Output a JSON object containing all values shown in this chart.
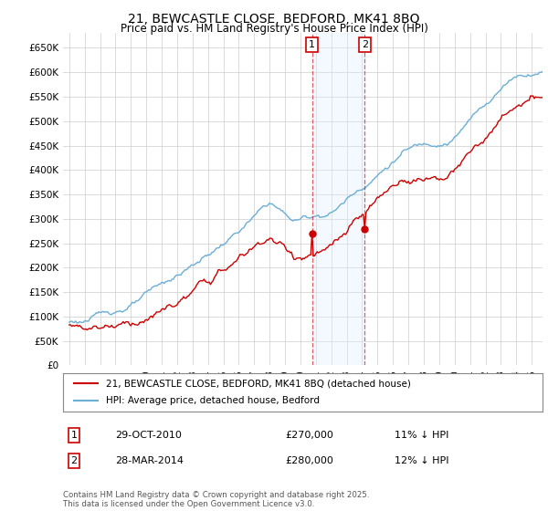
{
  "title": "21, BEWCASTLE CLOSE, BEDFORD, MK41 8BQ",
  "subtitle": "Price paid vs. HM Land Registry's House Price Index (HPI)",
  "ylim": [
    0,
    680000
  ],
  "yticks": [
    0,
    50000,
    100000,
    150000,
    200000,
    250000,
    300000,
    350000,
    400000,
    450000,
    500000,
    550000,
    600000,
    650000
  ],
  "ytick_labels": [
    "£0",
    "£50K",
    "£100K",
    "£150K",
    "£200K",
    "£250K",
    "£300K",
    "£350K",
    "£400K",
    "£450K",
    "£500K",
    "£550K",
    "£600K",
    "£650K"
  ],
  "hpi_color": "#6baed6",
  "price_color": "#cc0000",
  "vline_color": "#cc0000",
  "vline_alpha": 0.6,
  "vline_style": "--",
  "shade_color": "#ddeeff",
  "shade_alpha": 0.35,
  "legend_label_red": "21, BEWCASTLE CLOSE, BEDFORD, MK41 8BQ (detached house)",
  "legend_label_blue": "HPI: Average price, detached house, Bedford",
  "transaction1_date": "29-OCT-2010",
  "transaction1_price": "£270,000",
  "transaction1_note": "11% ↓ HPI",
  "transaction2_date": "28-MAR-2014",
  "transaction2_price": "£280,000",
  "transaction2_note": "12% ↓ HPI",
  "footer": "Contains HM Land Registry data © Crown copyright and database right 2025.\nThis data is licensed under the Open Government Licence v3.0.",
  "bg_color": "#ffffff",
  "grid_color": "#cccccc",
  "title_fontsize": 10,
  "subtitle_fontsize": 8.5,
  "tick_fontsize": 7.5
}
